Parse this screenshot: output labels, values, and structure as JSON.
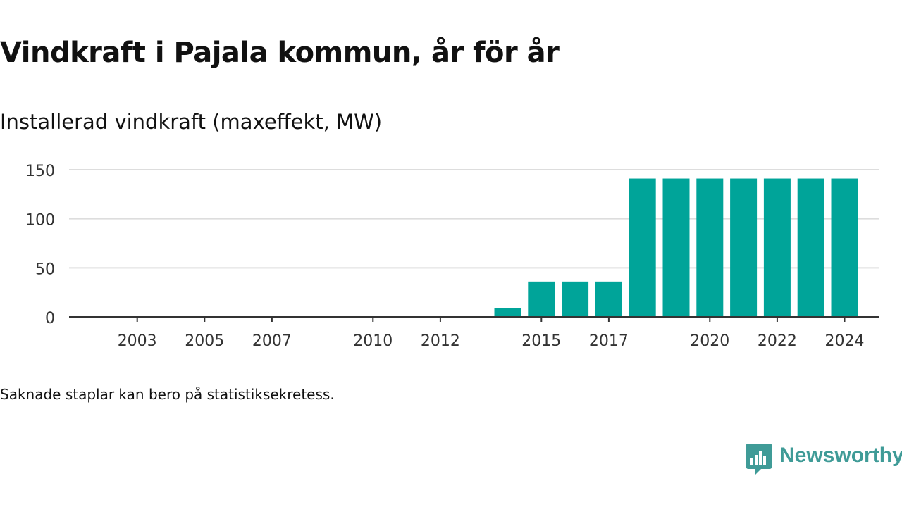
{
  "chart_data": {
    "type": "bar",
    "title": "Vindkraft i Pajala kommun, år för år",
    "subtitle": "Installerad vindkraft (maxeffekt, MW)",
    "categories": [
      "2002",
      "2003",
      "2004",
      "2005",
      "2006",
      "2007",
      "2008",
      "2009",
      "2010",
      "2011",
      "2012",
      "2013",
      "2014",
      "2015",
      "2016",
      "2017",
      "2018",
      "2019",
      "2020",
      "2021",
      "2022",
      "2023",
      "2024"
    ],
    "x_tick_labels": [
      "2003",
      "2005",
      "2007",
      "2010",
      "2012",
      "2015",
      "2017",
      "2020",
      "2022",
      "2024"
    ],
    "values": [
      0,
      0,
      0,
      0,
      0,
      0,
      0,
      0,
      0,
      0,
      0,
      0,
      9.2,
      36,
      36,
      36,
      141,
      141,
      141,
      141,
      141,
      141,
      141
    ],
    "ylim": [
      0,
      150
    ],
    "y_ticks": [
      0,
      50,
      100,
      150
    ],
    "grid": true,
    "bar_color": "#00a499"
  },
  "footnote": "Saknade staplar kan bero på statistiksekretess.",
  "brand": {
    "name": "Newsworthy",
    "color": "#3f9b97",
    "icon": "newsworthy-logo-icon"
  }
}
